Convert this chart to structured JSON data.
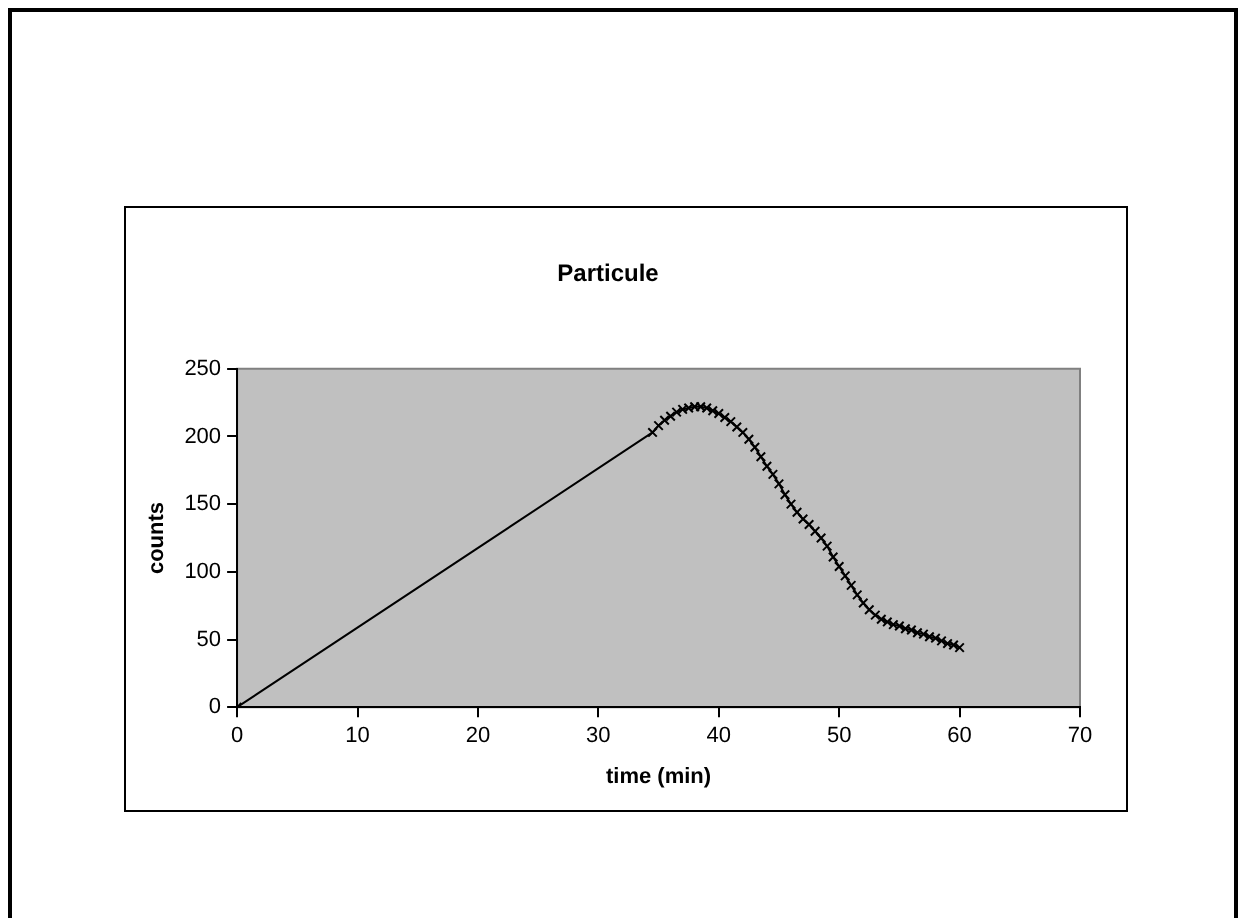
{
  "chart_data": {
    "type": "scatter",
    "title": "Particule",
    "xlabel": "time (min)",
    "ylabel": "counts",
    "series": [
      {
        "type": "line",
        "color": "#000000",
        "x": [
          0,
          34.5,
          35,
          35.5,
          36,
          36.5,
          37,
          37.5,
          38,
          38.5,
          39,
          39.5,
          40,
          40.5,
          41,
          41.5,
          42,
          42.5,
          43,
          43.5,
          44,
          44.5,
          45,
          45.5,
          46,
          46.5,
          47,
          47.5,
          48,
          48.5,
          49,
          49.5,
          50,
          50.5,
          51,
          51.5,
          52,
          52.5,
          53,
          53.5,
          54,
          54.5,
          55,
          55.5,
          56,
          56.5,
          57,
          57.5,
          58,
          58.5,
          59,
          59.5,
          60
        ],
        "values": [
          0,
          203,
          208,
          212,
          215,
          218,
          220,
          221,
          222,
          222,
          221,
          219,
          217,
          214,
          211,
          207,
          203,
          198,
          192,
          185,
          178,
          172,
          165,
          157,
          150,
          144,
          139,
          135,
          130,
          125,
          119,
          111,
          104,
          97,
          90,
          83,
          77,
          72,
          68,
          65,
          63,
          61,
          60,
          58,
          57,
          55,
          54,
          52,
          51,
          49,
          47,
          46,
          44
        ]
      }
    ],
    "xlim": [
      0,
      70
    ],
    "xticks": [
      0,
      10,
      20,
      30,
      40,
      50,
      60,
      70
    ],
    "ylim": [
      0,
      250
    ],
    "yticks": [
      0,
      50,
      100,
      150,
      200,
      250
    ],
    "grid": false,
    "legend": false,
    "marker": "cross",
    "line_style": "solid"
  }
}
